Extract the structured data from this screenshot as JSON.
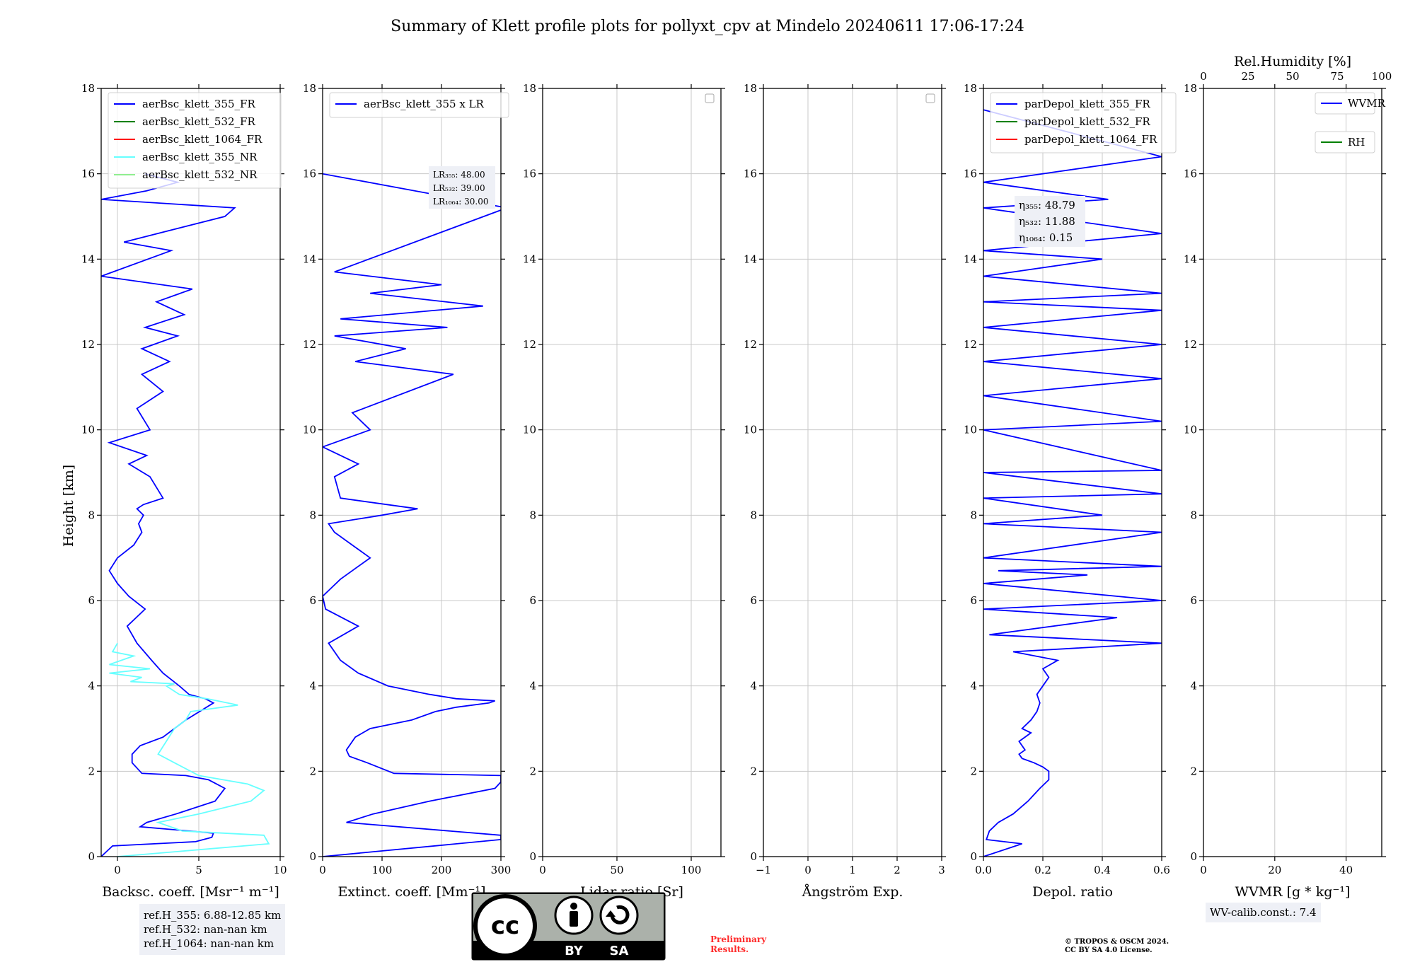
{
  "title": "Summary of Klett profile plots for pollyxt_cpv at Mindelo 20240611 17:06-17:24",
  "chart_data": [
    {
      "type": "line",
      "xlabel": "Backsc. coeff. [Msr⁻¹ m⁻¹]",
      "ylabel": "Height [km]",
      "xlim": [
        -1,
        10
      ],
      "ylim": [
        0,
        18
      ],
      "xticks": [
        "0",
        "5",
        "10"
      ],
      "yticks": [
        "0",
        "2",
        "4",
        "6",
        "8",
        "10",
        "12",
        "14",
        "16",
        "18"
      ],
      "grid": true,
      "legend_position": "top-left",
      "series": [
        {
          "name": "aerBsc_klett_355_FR",
          "color": "#0000ff",
          "x": [
            -1.0,
            -0.3,
            4.8,
            5.8,
            5.9,
            1.4,
            1.8,
            3.6,
            6.0,
            6.6,
            5.6,
            4.2,
            1.5,
            0.9,
            0.9,
            1.4,
            2.8,
            3.5,
            4.2,
            5.9,
            5.4,
            4.4,
            3.8,
            2.8,
            2.1,
            1.2,
            0.6,
            1.7,
            0.7,
            0.0,
            -0.5,
            0.0,
            1.0,
            1.5,
            1.3,
            1.6,
            1.2,
            1.6,
            2.8,
            2.0,
            0.7,
            1.8,
            -0.5,
            2.0,
            1.2,
            2.8,
            1.5,
            3.2,
            1.5,
            3.7,
            1.7,
            4.1,
            2.4,
            4.6,
            -1.0,
            3.3,
            0.4,
            6.6,
            7.2,
            -1.0,
            1.8,
            3.7,
            1.7
          ],
          "y": [
            0.0,
            0.25,
            0.35,
            0.45,
            0.55,
            0.7,
            0.8,
            1.0,
            1.3,
            1.6,
            1.8,
            1.9,
            1.95,
            2.2,
            2.4,
            2.6,
            2.8,
            3.0,
            3.2,
            3.6,
            3.7,
            3.8,
            4.0,
            4.3,
            4.6,
            5.0,
            5.4,
            5.8,
            6.1,
            6.4,
            6.7,
            7.0,
            7.3,
            7.6,
            7.8,
            8.0,
            8.15,
            8.25,
            8.4,
            8.9,
            9.2,
            9.4,
            9.7,
            10.0,
            10.5,
            10.9,
            11.3,
            11.6,
            11.9,
            12.2,
            12.4,
            12.7,
            13.0,
            13.3,
            13.6,
            14.2,
            14.4,
            15.0,
            15.2,
            15.4,
            15.6,
            15.8,
            16.0
          ]
        },
        {
          "name": "aerBsc_klett_532_FR",
          "color": "#008000",
          "x": [],
          "y": []
        },
        {
          "name": "aerBsc_klett_1064_FR",
          "color": "#ff0000",
          "x": [],
          "y": []
        },
        {
          "name": "aerBsc_klett_355_NR",
          "color": "#66ffff",
          "x": [
            0.0,
            9.3,
            9.0,
            4.0,
            2.5,
            5.0,
            8.2,
            9.0,
            8.0,
            5.0,
            3.5,
            2.5,
            3.0,
            3.5,
            4.2,
            4.5,
            7.4,
            5.5,
            3.8,
            3.0,
            3.5,
            0.8,
            1.5,
            -0.5,
            2.0,
            -0.5,
            1.0,
            -0.3,
            0.0
          ],
          "y": [
            0.0,
            0.3,
            0.5,
            0.6,
            0.8,
            1.0,
            1.3,
            1.55,
            1.7,
            1.9,
            2.2,
            2.4,
            2.7,
            3.0,
            3.2,
            3.4,
            3.55,
            3.7,
            3.8,
            4.0,
            4.05,
            4.1,
            4.2,
            4.3,
            4.4,
            4.5,
            4.7,
            4.8,
            5.0
          ]
        },
        {
          "name": "aerBsc_klett_532_NR",
          "color": "#90ee90",
          "x": [],
          "y": []
        }
      ]
    },
    {
      "type": "line",
      "xlabel": "Extinct. coeff. [Mm⁻¹]",
      "ylabel": "",
      "xlim": [
        0,
        300
      ],
      "ylim": [
        0,
        18
      ],
      "xticks": [
        "0",
        "100",
        "200",
        "300"
      ],
      "yticks": [
        "0",
        "2",
        "4",
        "6",
        "8",
        "10",
        "12",
        "14",
        "16",
        "18"
      ],
      "grid": true,
      "legend_position": "top-left",
      "lr_labels": [
        "LR₃₅₅: 48.00",
        "LR₅₃₂: 39.00",
        "LR₁₀₆₄: 30.00"
      ],
      "series": [
        {
          "name": "aerBsc_klett_355 x LR",
          "color": "#0000ff",
          "x": [
            0,
            300,
            300,
            40,
            85,
            180,
            290,
            300,
            300,
            120,
            75,
            45,
            40,
            55,
            80,
            150,
            190,
            225,
            280,
            290,
            225,
            180,
            110,
            60,
            30,
            10,
            60,
            5,
            0,
            30,
            60,
            80,
            50,
            20,
            10,
            100,
            160,
            30,
            20,
            60,
            0,
            80,
            50,
            220,
            55,
            140,
            20,
            210,
            30,
            270,
            80,
            200,
            20,
            310,
            0
          ],
          "y": [
            0.0,
            0.4,
            0.5,
            0.8,
            1.0,
            1.3,
            1.6,
            1.75,
            1.9,
            1.95,
            2.2,
            2.35,
            2.5,
            2.8,
            3.0,
            3.2,
            3.4,
            3.5,
            3.6,
            3.65,
            3.7,
            3.8,
            4.0,
            4.3,
            4.6,
            5.0,
            5.4,
            5.8,
            6.1,
            6.5,
            6.8,
            7.0,
            7.3,
            7.6,
            7.8,
            8.0,
            8.15,
            8.4,
            8.9,
            9.2,
            9.6,
            10.0,
            10.4,
            11.3,
            11.6,
            11.9,
            12.2,
            12.4,
            12.6,
            12.9,
            13.2,
            13.4,
            13.7,
            15.2,
            16.0
          ]
        }
      ]
    },
    {
      "type": "line",
      "xlabel": "Lidar ratio [Sr]",
      "xlim": [
        0,
        120
      ],
      "ylim": [
        0,
        18
      ],
      "xticks": [
        "0",
        "50",
        "100"
      ],
      "yticks": [
        "0",
        "2",
        "4",
        "6",
        "8",
        "10",
        "12",
        "14",
        "16",
        "18"
      ],
      "grid": true,
      "legend_position": "top-right",
      "series": []
    },
    {
      "type": "line",
      "xlabel": "Ångström Exp.",
      "xlim": [
        -1,
        3
      ],
      "ylim": [
        0,
        18
      ],
      "xticks": [
        "−1",
        "0",
        "1",
        "2",
        "3"
      ],
      "yticks": [
        "0",
        "2",
        "4",
        "6",
        "8",
        "10",
        "12",
        "14",
        "16",
        "18"
      ],
      "grid": true,
      "legend_position": "top-right",
      "series": []
    },
    {
      "type": "line",
      "xlabel": "Depol. ratio",
      "xlim": [
        0.0,
        0.6
      ],
      "ylim": [
        0,
        18
      ],
      "xticks": [
        "0.0",
        "0.2",
        "0.4",
        "0.6"
      ],
      "yticks": [
        "0",
        "2",
        "4",
        "6",
        "8",
        "10",
        "12",
        "14",
        "16",
        "18"
      ],
      "grid": true,
      "legend_position": "top-left",
      "eta_labels": [
        "η₃₅₅: 48.79",
        "η₅₃₂: 11.88",
        "η₁₀₆₄: 0.15"
      ],
      "series": [
        {
          "name": "parDepol_klett_355_FR",
          "color": "#0000ff",
          "x": [
            0.0,
            0.13,
            0.01,
            0.02,
            0.05,
            0.1,
            0.15,
            0.19,
            0.22,
            0.22,
            0.2,
            0.17,
            0.13,
            0.12,
            0.14,
            0.12,
            0.16,
            0.13,
            0.16,
            0.18,
            0.19,
            0.18,
            0.2,
            0.22,
            0.2,
            0.25,
            0.1,
            0.6,
            0.02,
            0.45,
            0.0,
            0.6,
            0.0,
            0.35,
            0.05,
            0.6,
            0.0,
            0.6,
            0.0,
            0.4,
            0.0,
            0.6,
            0.0,
            0.6,
            0.0,
            0.6,
            0.0,
            0.6,
            0.0,
            0.6,
            0.0,
            0.6,
            0.0,
            0.6,
            0.0,
            0.4,
            0.0,
            0.6,
            0.0,
            0.42,
            0.0,
            0.6,
            0.0
          ],
          "y": [
            0.0,
            0.3,
            0.4,
            0.6,
            0.8,
            1.0,
            1.3,
            1.6,
            1.8,
            2.0,
            2.1,
            2.2,
            2.3,
            2.4,
            2.5,
            2.7,
            2.9,
            3.0,
            3.2,
            3.4,
            3.6,
            3.8,
            4.0,
            4.2,
            4.4,
            4.6,
            4.8,
            5.0,
            5.2,
            5.6,
            5.8,
            6.0,
            6.4,
            6.6,
            6.7,
            6.8,
            7.0,
            7.6,
            7.8,
            8.0,
            8.4,
            8.5,
            9.0,
            9.05,
            10.0,
            10.2,
            10.8,
            11.2,
            11.6,
            12.0,
            12.4,
            12.8,
            13.0,
            13.2,
            13.6,
            14.0,
            14.2,
            14.6,
            15.2,
            15.4,
            15.8,
            16.4,
            17.5
          ]
        },
        {
          "name": "parDepol_klett_532_FR",
          "color": "#008000",
          "x": [],
          "y": []
        },
        {
          "name": "parDepol_klett_1064_FR",
          "color": "#ff0000",
          "x": [],
          "y": []
        }
      ]
    },
    {
      "type": "line",
      "xlabel": "WVMR [g * kg⁻¹]",
      "x2label": "Rel.Humidity [%]",
      "xlim": [
        0,
        50
      ],
      "x2lim": [
        0,
        100
      ],
      "ylim": [
        0,
        18
      ],
      "xticks": [
        "0",
        "20",
        "40"
      ],
      "x2ticks": [
        "0",
        "25",
        "50",
        "75",
        "100"
      ],
      "yticks": [
        "0",
        "2",
        "4",
        "6",
        "8",
        "10",
        "12",
        "14",
        "16",
        "18"
      ],
      "grid": true,
      "legend_position": "top-right",
      "series": [
        {
          "name": "WVMR",
          "color": "#0000ff",
          "x": [],
          "y": []
        },
        {
          "name": "RH",
          "color": "#008000",
          "x": [],
          "y": []
        }
      ]
    }
  ],
  "notes": {
    "ref_h": [
      "ref.H_355: 6.88-12.85 km",
      "ref.H_532: nan-nan km",
      "ref.H_1064: nan-nan km"
    ],
    "wv_calib": "WV-calib.const.: 7.4",
    "preliminary": [
      "Preliminary",
      "Results."
    ],
    "copyright": [
      "© TROPOS & OSCM 2024.",
      "CC BY SA 4.0 License."
    ]
  },
  "cc_badge": {
    "left": "BY",
    "right": "SA",
    "logo": "cc"
  }
}
